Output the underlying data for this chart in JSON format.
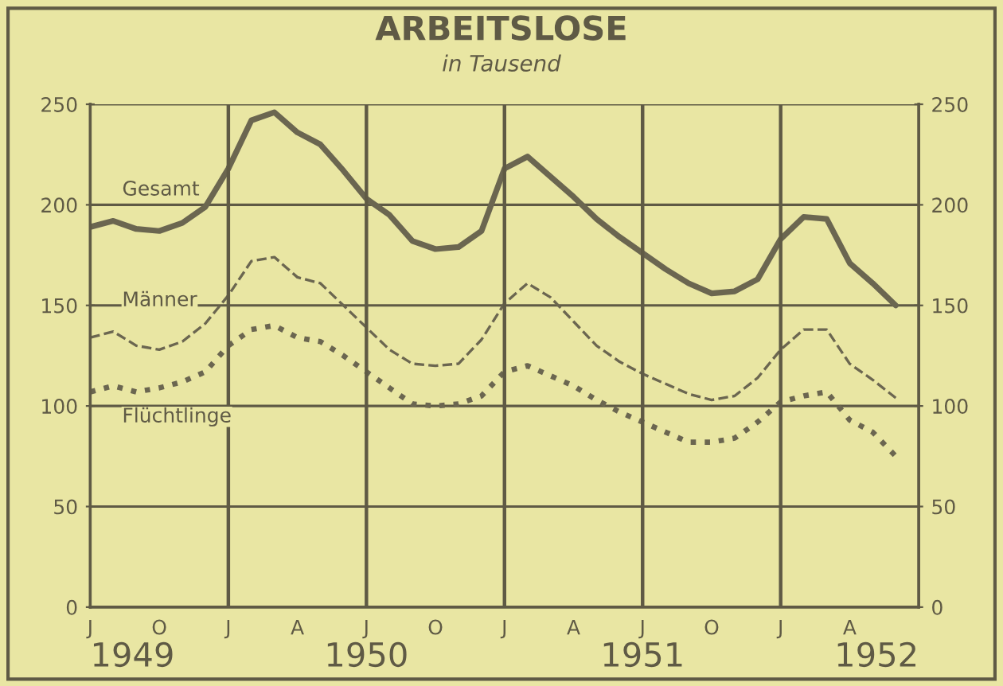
{
  "chart_data": {
    "type": "line",
    "title": "ARBEITSLOSE",
    "subtitle": "in Tausend",
    "categories": [
      "J",
      null,
      null,
      "O",
      null,
      null,
      "J",
      null,
      null,
      "A",
      null,
      null,
      "J",
      null,
      null,
      "O",
      null,
      null,
      "J",
      null,
      null,
      "A",
      null,
      null,
      "J",
      null,
      null,
      "O",
      null,
      null,
      "J",
      null,
      null,
      "A",
      null,
      null
    ],
    "series": [
      {
        "name": "Gesamt",
        "color": "#6b6650",
        "line_style": "solid",
        "values": [
          189,
          192,
          188,
          187,
          191,
          199,
          218,
          242,
          246,
          236,
          230,
          217,
          203,
          195,
          182,
          178,
          179,
          187,
          218,
          224,
          214,
          204,
          193,
          184,
          176,
          168,
          161,
          156,
          157,
          163,
          183,
          194,
          193,
          171,
          161,
          150
        ]
      },
      {
        "name": "Männer",
        "color": "#6b6650",
        "line_style": "dashed",
        "values": [
          134,
          137,
          130,
          128,
          132,
          141,
          155,
          172,
          174,
          164,
          161,
          150,
          139,
          128,
          121,
          120,
          121,
          133,
          151,
          161,
          154,
          142,
          130,
          122,
          116,
          111,
          106,
          103,
          105,
          114,
          128,
          138,
          138,
          121,
          113,
          104
        ]
      },
      {
        "name": "Flüchtlinge",
        "color": "#6b6650",
        "line_style": "dotted",
        "values": [
          107,
          110,
          107,
          109,
          112,
          117,
          130,
          138,
          140,
          134,
          132,
          125,
          117,
          109,
          101,
          100,
          101,
          105,
          117,
          120,
          115,
          110,
          103,
          97,
          92,
          87,
          82,
          82,
          84,
          92,
          102,
          105,
          107,
          93,
          87,
          75
        ]
      }
    ],
    "ylim": [
      0,
      250
    ],
    "yticks": [
      0,
      50,
      100,
      150,
      200,
      250
    ],
    "y2lim": [
      0,
      250
    ],
    "y2ticks": [
      0,
      50,
      100,
      150,
      200,
      250
    ],
    "grid": true,
    "annotations": [
      "1949",
      "1950",
      "1951",
      "1952"
    ]
  }
}
